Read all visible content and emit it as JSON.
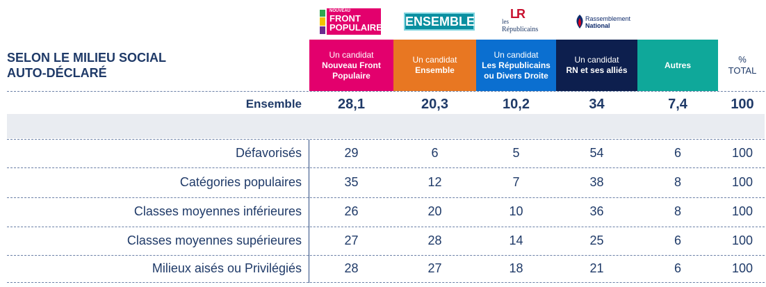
{
  "title_line1": "SELON LE MILIEU SOCIAL",
  "title_line2": "AUTO-DÉCLARÉ",
  "logos": {
    "nfp_small": "NOUVEAU",
    "nfp_line1": "FRONT",
    "nfp_line2": "POPULAIRE",
    "ensemble": "ENSEMBLE",
    "lr_mark": "LR",
    "lr_les": "les",
    "lr_name": "Républicains",
    "rn_line1": "Rassemblement",
    "rn_line2": "National"
  },
  "colors": {
    "nfp": "#e3006d",
    "ensemble": "#e87722",
    "lr": "#0b6fd0",
    "rn": "#0d1f4e",
    "autres": "#0fa89a",
    "text": "#1f3a68"
  },
  "chart_data": {
    "type": "table",
    "columns": [
      {
        "line1": "Un candidat",
        "line2": "Nouveau Front",
        "line3": "Populaire"
      },
      {
        "line1": "Un candidat",
        "line2": "Ensemble",
        "line3": ""
      },
      {
        "line1": "Un candidat",
        "line2": "Les Républicains",
        "line3": "ou Divers Droite"
      },
      {
        "line1": "Un candidat",
        "line2": "RN et ses alliés",
        "line3": ""
      },
      {
        "line1": "",
        "line2": "Autres",
        "line3": ""
      }
    ],
    "total_header": {
      "line1": "%",
      "line2": "TOTAL"
    },
    "summary_row": {
      "label": "Ensemble",
      "values": [
        "28,1",
        "20,3",
        "10,2",
        "34",
        "7,4"
      ],
      "total": "100"
    },
    "rows": [
      {
        "label": "Défavorisés",
        "values": [
          29,
          6,
          5,
          54,
          6
        ],
        "total": 100
      },
      {
        "label": "Catégories populaires",
        "values": [
          35,
          12,
          7,
          38,
          8
        ],
        "total": 100
      },
      {
        "label": "Classes moyennes inférieures",
        "values": [
          26,
          20,
          10,
          36,
          8
        ],
        "total": 100
      },
      {
        "label": "Classes moyennes supérieures",
        "values": [
          27,
          28,
          14,
          25,
          6
        ],
        "total": 100
      },
      {
        "label": "Milieux aisés ou Privilégiés",
        "values": [
          28,
          27,
          18,
          21,
          6
        ],
        "total": 100
      }
    ]
  }
}
